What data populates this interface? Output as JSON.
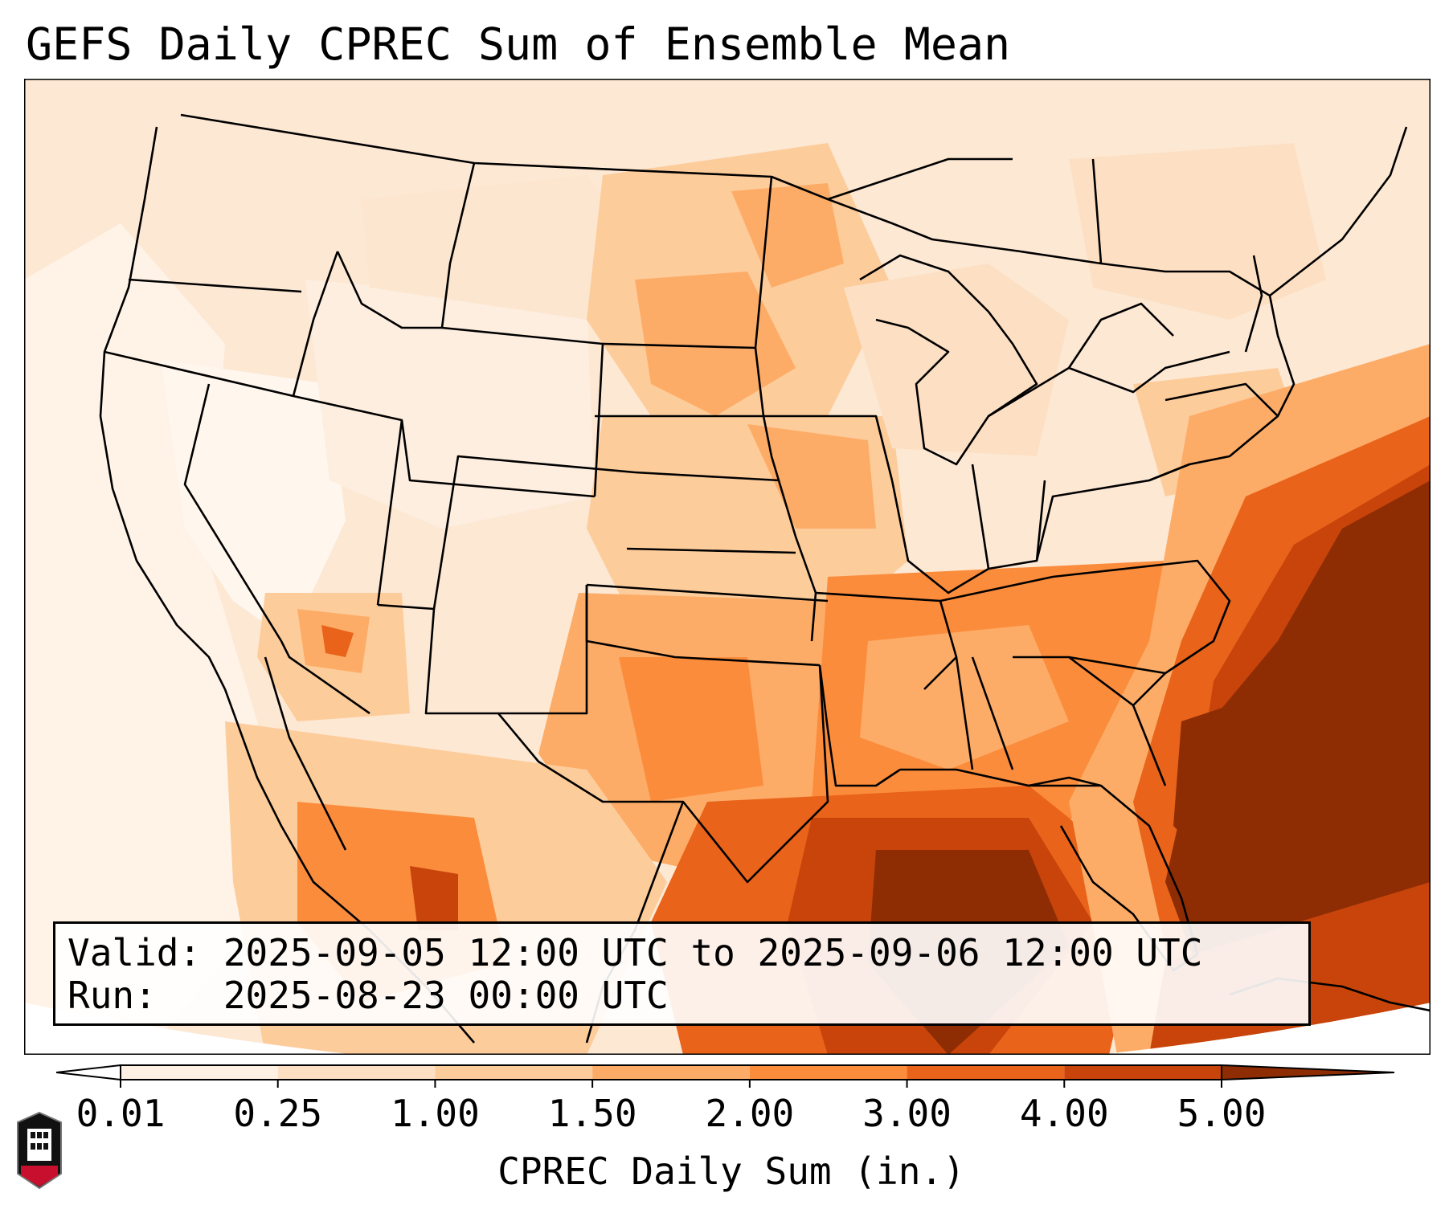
{
  "title": "GEFS Daily CPREC Sum of Ensemble Mean",
  "info": {
    "valid_line": "Valid: 2025-09-05 12:00 UTC to 2025-09-06 12:00 UTC",
    "run_line": "Run:   2025-08-23 00:00 UTC"
  },
  "colorbar": {
    "label": "CPREC Daily Sum (in.)",
    "ticks": [
      "0.01",
      "0.25",
      "1.00",
      "1.50",
      "2.00",
      "3.00",
      "4.00",
      "5.00"
    ],
    "colors": [
      "#fef1e3",
      "#fde0c4",
      "#fdcc9b",
      "#fdac67",
      "#fb8c3c",
      "#e9631a",
      "#c8440a",
      "#8e2d04"
    ],
    "extend": "both"
  },
  "map": {
    "background": "#ffffff",
    "ocean_color": "#ffffff",
    "border_color": "#000000",
    "rain_scale_colors": [
      "#fef4ea",
      "#fde0c4",
      "#fdcc9b",
      "#fdac67",
      "#fb8c3c",
      "#e9631a",
      "#c8440a",
      "#8e2d04"
    ]
  },
  "logo": {
    "text": "NIU",
    "color": "#c8102e"
  }
}
